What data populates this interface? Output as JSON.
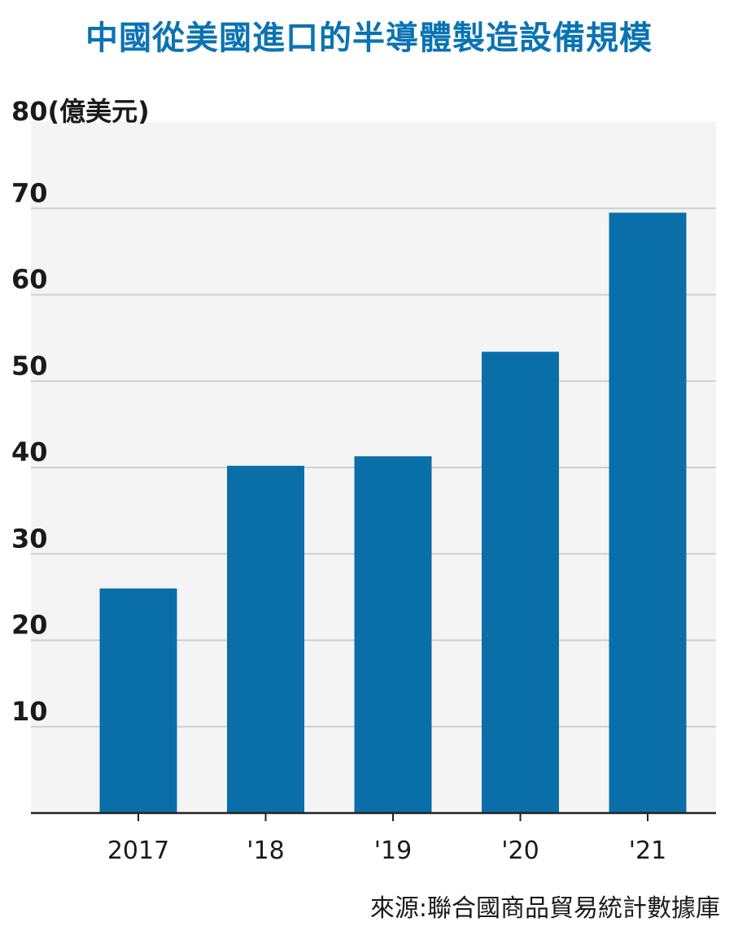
{
  "title": "中國從美國進口的半導體製造設備規模",
  "source": "來源:聯合國商品貿易統計數據庫",
  "colors": {
    "bar": "#0a6fa8",
    "grid": "#cfcfcf",
    "title": "#0a73b3",
    "plot_bg": "#f4f4f4"
  },
  "chart_data": {
    "type": "bar",
    "title": "中國從美國進口的半導體製造設備規模",
    "xlabel": "",
    "ylabel": "(億美元)",
    "unit": "億美元",
    "categories": [
      "2017",
      "'18",
      "'19",
      "'20",
      "'21"
    ],
    "values": [
      26,
      40.2,
      41.3,
      53.4,
      69.5
    ],
    "ylim": [
      0,
      80
    ],
    "yticks": [
      10,
      20,
      30,
      40,
      50,
      60,
      70,
      80
    ],
    "top_tick_label": "80(億美元)",
    "grid": true,
    "legend": "none"
  }
}
